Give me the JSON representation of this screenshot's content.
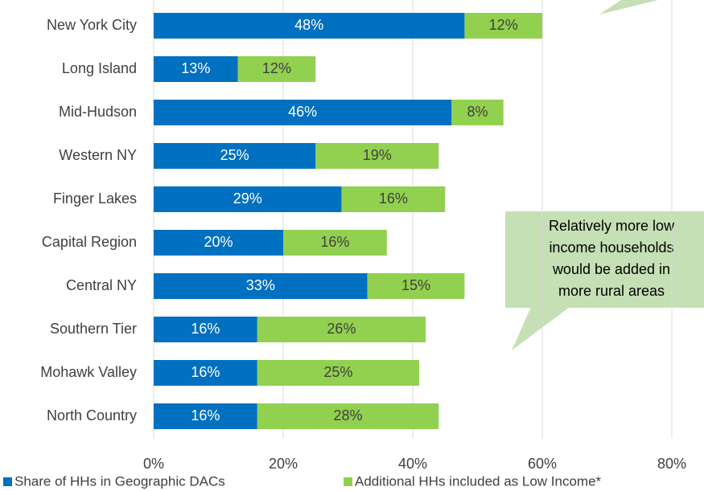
{
  "chart_data": {
    "type": "stacked_bar_horizontal",
    "categories": [
      "New York City",
      "Long Island",
      "Mid-Hudson",
      "Western NY",
      "Finger Lakes",
      "Capital Region",
      "Central NY",
      "Southern Tier",
      "Mohawk Valley",
      "North Country"
    ],
    "series": [
      {
        "name": "Share of HHs in Geographic DACs",
        "color": "#0070c0",
        "label_color": "#ffffff",
        "values": [
          48,
          13,
          46,
          25,
          29,
          20,
          33,
          16,
          16,
          16
        ],
        "value_labels": [
          "48%",
          "13%",
          "46%",
          "25%",
          "29%",
          "20%",
          "33%",
          "16%",
          "16%",
          "16%"
        ]
      },
      {
        "name": "Additional HHs included as Low Income*",
        "color": "#92d050",
        "label_color": "#404040",
        "values": [
          12,
          12,
          8,
          19,
          16,
          16,
          15,
          26,
          25,
          28
        ],
        "value_labels": [
          "12%",
          "12%",
          "8%",
          "19%",
          "16%",
          "16%",
          "15%",
          "26%",
          "25%",
          "28%"
        ]
      }
    ],
    "xlim": [
      0,
      80
    ],
    "xticks": [
      {
        "value": 0,
        "label": "0%"
      },
      {
        "value": 20,
        "label": "20%"
      },
      {
        "value": 40,
        "label": "40%"
      },
      {
        "value": 60,
        "label": "60%"
      },
      {
        "value": 80,
        "label": "80%"
      }
    ],
    "grid": true,
    "legend": "bottom",
    "annotation": [
      "Relatively more low",
      "income households",
      "would be added in",
      "more rural areas"
    ]
  }
}
